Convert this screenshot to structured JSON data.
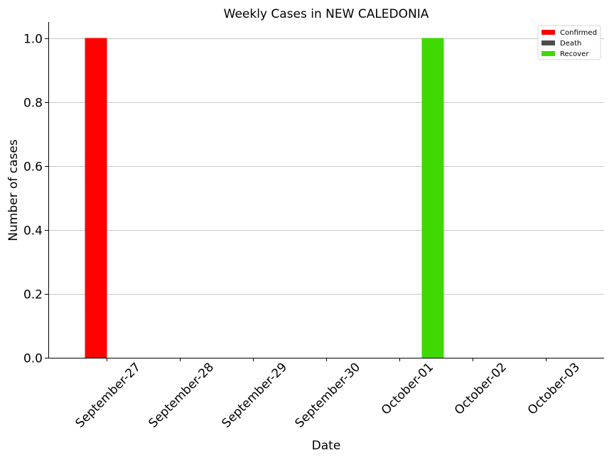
{
  "chart_data": {
    "type": "bar",
    "title": "Weekly Cases in NEW CALEDONIA",
    "xlabel": "Date",
    "ylabel": "Number of cases",
    "categories": [
      "September-27",
      "September-28",
      "September-29",
      "September-30",
      "October-01",
      "October-02",
      "October-03"
    ],
    "series": [
      {
        "name": "Confirmed",
        "color": "#ff0000",
        "values": [
          1,
          0,
          0,
          0,
          0,
          0,
          0
        ]
      },
      {
        "name": "Death",
        "color": "#4d4d4d",
        "values": [
          0,
          0,
          0,
          0,
          0,
          0,
          0
        ]
      },
      {
        "name": "Recover",
        "color": "#3fd800",
        "values": [
          0,
          0,
          0,
          0,
          1,
          0,
          0
        ]
      }
    ],
    "ylim": [
      0,
      1.05
    ],
    "yticks": [
      "0.0",
      "0.2",
      "0.4",
      "0.6",
      "0.8",
      "1.0"
    ],
    "grid": "y",
    "legend": "top-right"
  }
}
